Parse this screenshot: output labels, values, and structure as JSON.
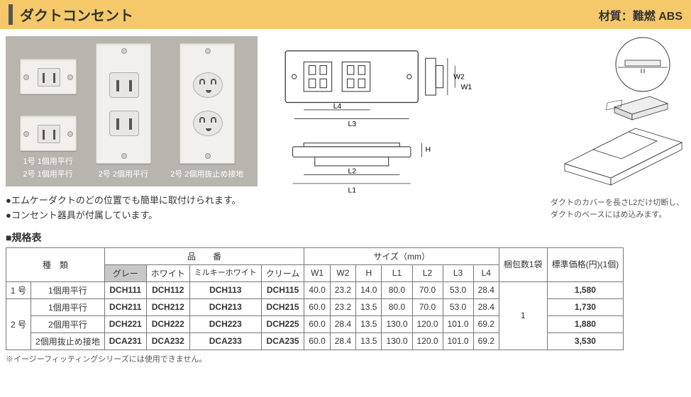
{
  "header": {
    "title": "ダクトコンセント",
    "material": "材質：難燃 ABS"
  },
  "photos": {
    "captions": [
      "1号 1個用平行",
      "2号 1個用平行",
      "2号 2個用平行",
      "2号 2個用抜止め接地"
    ]
  },
  "bullets": [
    "●エムケーダクトのどの位置でも簡単に取付けられます。",
    "●コンセント器具が付属しています。"
  ],
  "diagram": {
    "labels": {
      "W1": "W1",
      "W2": "W2",
      "H": "H",
      "L1": "L1",
      "L2": "L2",
      "L3": "L3",
      "L4": "L4"
    },
    "side_caption": "ダクトのカバーを長さL2だけ切断し、ダクトのベースにはめ込みます。"
  },
  "spec": {
    "heading": "■規格表",
    "headers": {
      "type": "種　類",
      "product_no": "品　　番",
      "colors": [
        "グレー",
        "ホワイト",
        "ミルキーホワイト",
        "クリーム"
      ],
      "size": "サイズ（mm）",
      "size_cols": [
        "W1",
        "W2",
        "H",
        "L1",
        "L2",
        "L3",
        "L4"
      ],
      "pack": "梱包数1袋",
      "price": "標準価格(円)(1個)"
    },
    "rows": [
      {
        "type_group": "1 号",
        "type": "1個用平行",
        "codes": [
          "DCH111",
          "DCH112",
          "DCH113",
          "DCH115"
        ],
        "sizes": [
          "40.0",
          "23.2",
          "14.0",
          "80.0",
          "70.0",
          "53.0",
          "28.4"
        ],
        "price": "1,580"
      },
      {
        "type_group": "2 号",
        "type": "1個用平行",
        "codes": [
          "DCH211",
          "DCH212",
          "DCH213",
          "DCH215"
        ],
        "sizes": [
          "60.0",
          "23.2",
          "13.5",
          "80.0",
          "70.0",
          "53.0",
          "28.4"
        ],
        "price": "1,730"
      },
      {
        "type_group": "",
        "type": "2個用平行",
        "codes": [
          "DCH221",
          "DCH222",
          "DCH223",
          "DCH225"
        ],
        "sizes": [
          "60.0",
          "28.4",
          "13.5",
          "130.0",
          "120.0",
          "101.0",
          "69.2"
        ],
        "price": "1,880"
      },
      {
        "type_group": "",
        "type": "2個用抜止め接地",
        "codes": [
          "DCA231",
          "DCA232",
          "DCA233",
          "DCA235"
        ],
        "sizes": [
          "60.0",
          "28.4",
          "13.5",
          "130.0",
          "120.0",
          "101.0",
          "69.2"
        ],
        "price": "3,530"
      }
    ],
    "pack_value": "1",
    "footnote": "※イージーフィッティングシリーズには使用できません。"
  },
  "colors": {
    "header_bg": "#f5c96a",
    "th_gray": "#c8c8c8",
    "border": "#777"
  }
}
